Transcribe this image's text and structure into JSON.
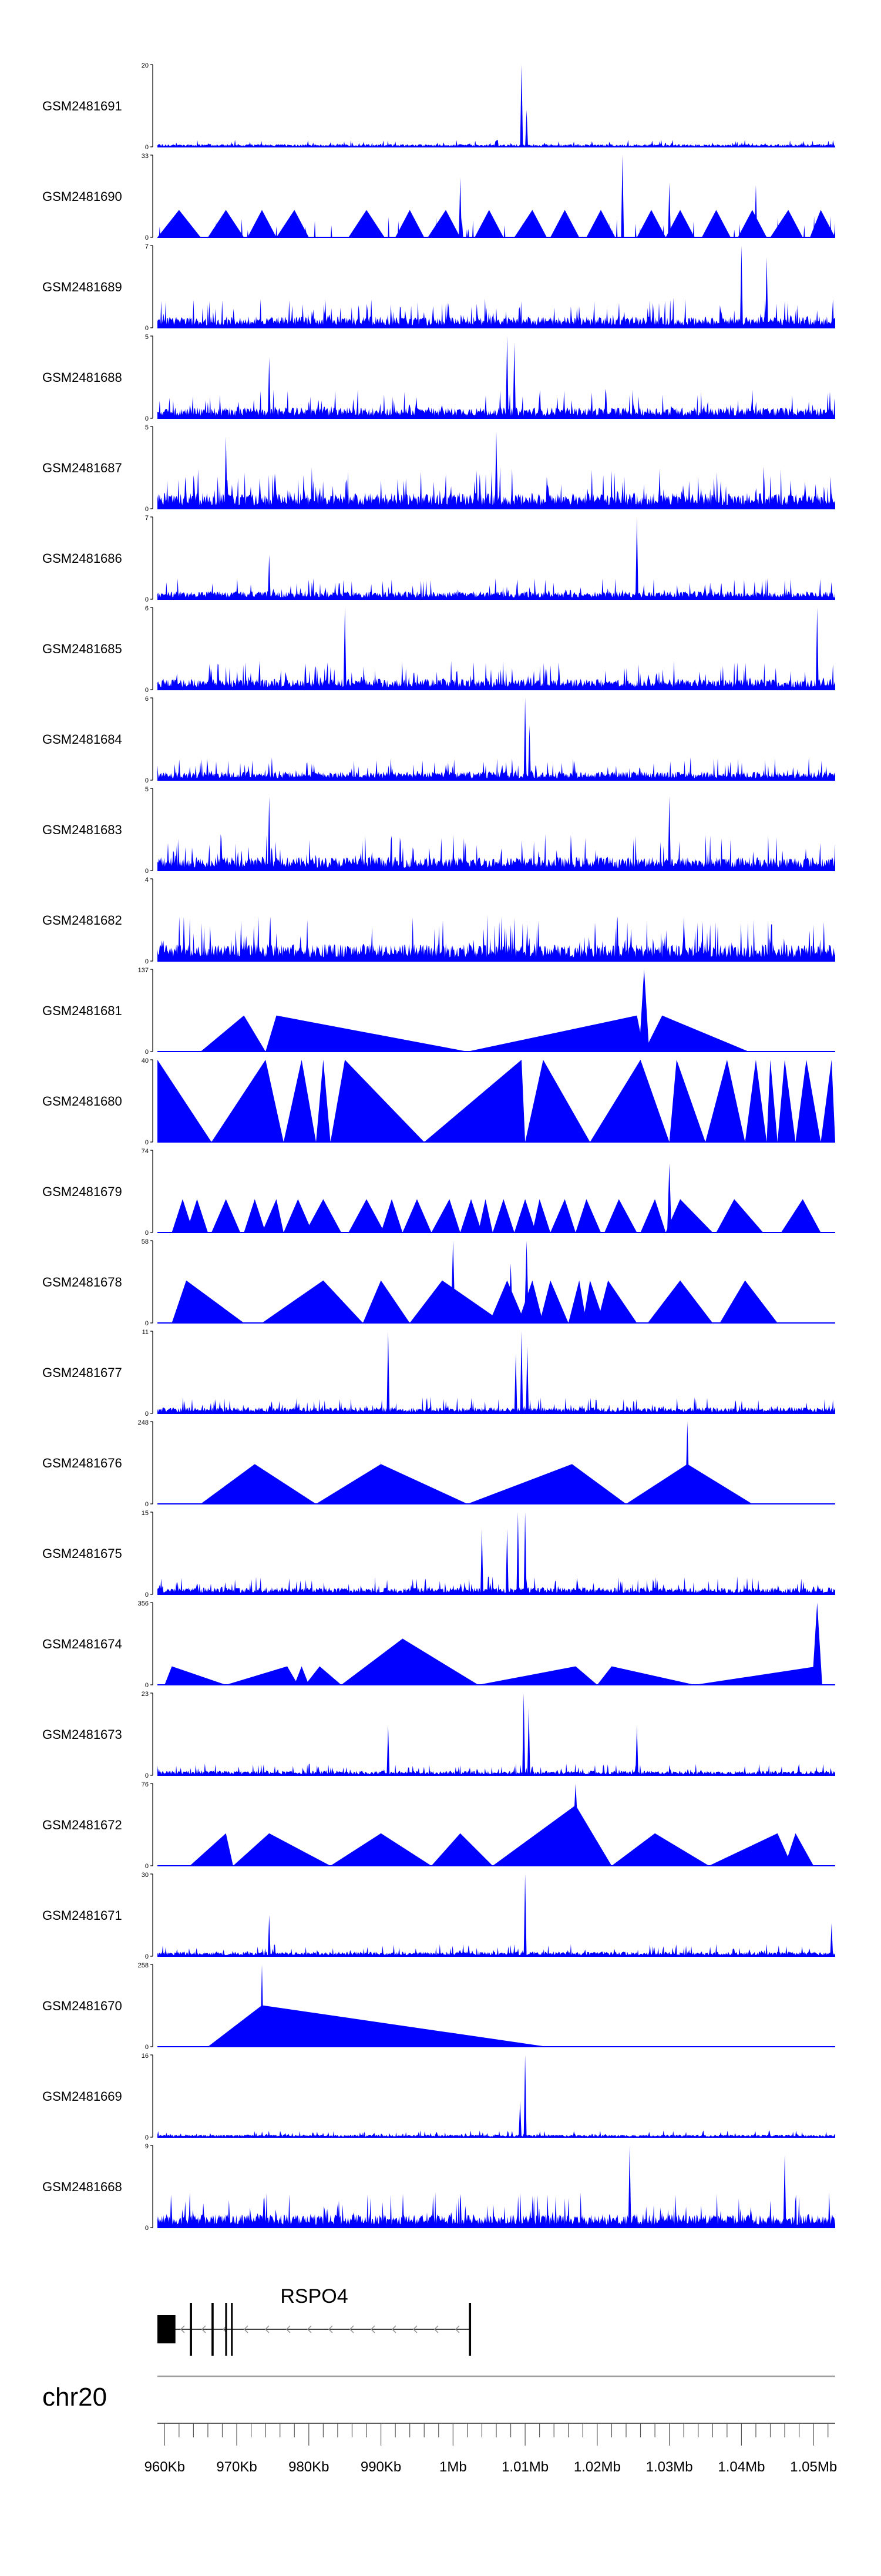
{
  "chart_data": {
    "type": "area",
    "title": "",
    "xlabel": "",
    "ylabel": "",
    "x_range_bp": [
      959000,
      1053000
    ],
    "colors": {
      "track": "#0000ff",
      "axis": "#000000",
      "gene": "#000000",
      "scale_line": "#a0a0a0"
    },
    "tracks": [
      {
        "name": "GSM2481691",
        "ymax": "20",
        "ymin": "0",
        "style": "noisy",
        "base": 1.6,
        "seed": 91,
        "peaks": [
          [
            1009500,
            20,
            200
          ],
          [
            1010200,
            9,
            200
          ]
        ]
      },
      {
        "name": "GSM2481690",
        "ymax": "33",
        "ymin": "0",
        "style": "mixed",
        "base": 4,
        "seed": 90,
        "triangles": [
          [
            959000,
            962000,
            965000,
            11
          ],
          [
            966000,
            968500,
            971000,
            11
          ],
          [
            971500,
            973500,
            975500,
            11
          ],
          [
            975500,
            978000,
            980000,
            11
          ],
          [
            985500,
            988000,
            990500,
            11
          ],
          [
            992000,
            994000,
            996000,
            11
          ],
          [
            996500,
            999000,
            1001000,
            11
          ],
          [
            1003000,
            1005000,
            1007000,
            11
          ],
          [
            1008500,
            1011000,
            1013000,
            11
          ],
          [
            1013500,
            1015500,
            1017500,
            11
          ],
          [
            1018500,
            1020500,
            1022500,
            11
          ],
          [
            1025500,
            1027500,
            1029500,
            11
          ],
          [
            1029500,
            1031500,
            1033500,
            11
          ],
          [
            1034500,
            1036500,
            1038500,
            11
          ],
          [
            1039500,
            1041500,
            1043500,
            11
          ],
          [
            1044000,
            1046500,
            1048500,
            11
          ],
          [
            1049500,
            1051000,
            1053000,
            11
          ]
        ],
        "peaks": [
          [
            1023500,
            33,
            200
          ],
          [
            1030000,
            22,
            200
          ],
          [
            1042000,
            21,
            200
          ],
          [
            1001000,
            24,
            200
          ]
        ]
      },
      {
        "name": "GSM2481689",
        "ymax": "7",
        "ymin": "0",
        "style": "noisy",
        "base": 2.3,
        "seed": 89,
        "peaks": [
          [
            1040000,
            7,
            200
          ],
          [
            1043500,
            6,
            200
          ]
        ]
      },
      {
        "name": "GSM2481688",
        "ymax": "5",
        "ymin": "0",
        "style": "noisy",
        "base": 1.6,
        "seed": 88,
        "peaks": [
          [
            1007500,
            5,
            200
          ],
          [
            1008500,
            4.6,
            200
          ],
          [
            974500,
            3.7,
            200
          ]
        ]
      },
      {
        "name": "GSM2481687",
        "ymax": "5",
        "ymin": "0",
        "style": "noisy",
        "base": 2.3,
        "seed": 87,
        "peaks": [
          [
            1006000,
            4.7,
            200
          ],
          [
            968500,
            4.4,
            200
          ]
        ]
      },
      {
        "name": "GSM2481686",
        "ymax": "7",
        "ymin": "0",
        "style": "noisy",
        "base": 1.6,
        "seed": 86,
        "peaks": [
          [
            1025500,
            7,
            200
          ],
          [
            974500,
            3.8,
            200
          ]
        ]
      },
      {
        "name": "GSM2481685",
        "ymax": "6",
        "ymin": "0",
        "style": "noisy",
        "base": 1.9,
        "seed": 85,
        "peaks": [
          [
            985000,
            6,
            200
          ],
          [
            1050500,
            6,
            200
          ]
        ]
      },
      {
        "name": "GSM2481684",
        "ymax": "6",
        "ymin": "0",
        "style": "noisy",
        "base": 1.5,
        "seed": 84,
        "peaks": [
          [
            1010000,
            6,
            200
          ],
          [
            1010600,
            4,
            200
          ]
        ]
      },
      {
        "name": "GSM2481683",
        "ymax": "5",
        "ymin": "0",
        "style": "noisy",
        "base": 2.0,
        "seed": 83,
        "peaks": [
          [
            974500,
            4.5,
            200
          ],
          [
            1030000,
            4.5,
            200
          ]
        ]
      },
      {
        "name": "GSM2481682",
        "ymax": "4",
        "ymin": "0",
        "style": "noisy",
        "base": 2.0,
        "seed": 82,
        "peaks": []
      },
      {
        "name": "GSM2481681",
        "ymax": "137",
        "ymin": "0",
        "style": "tri",
        "base": 0,
        "seed": 81,
        "triangles": [
          [
            965000,
            971000,
            974000,
            60
          ],
          [
            974000,
            975500,
            1002000,
            60
          ],
          [
            1002000,
            1025500,
            1026500,
            60
          ],
          [
            1026500,
            1029000,
            1041000,
            60
          ]
        ],
        "peaks": [
          [
            1026500,
            137,
            700
          ]
        ]
      },
      {
        "name": "GSM2481680",
        "ymax": "40",
        "ymin": "0",
        "style": "tri",
        "base": 0,
        "seed": 80,
        "triangles": [
          [
            959000,
            959000,
            966500,
            40
          ],
          [
            966500,
            974000,
            976500,
            40
          ],
          [
            976500,
            979000,
            981000,
            40
          ],
          [
            981000,
            982000,
            983000,
            40
          ],
          [
            983000,
            985000,
            996000,
            40
          ],
          [
            996000,
            1009500,
            1010000,
            40
          ],
          [
            1010000,
            1012500,
            1019000,
            40
          ],
          [
            1019000,
            1026000,
            1030000,
            40
          ],
          [
            1030000,
            1031000,
            1035000,
            40
          ],
          [
            1035000,
            1038000,
            1040500,
            40
          ],
          [
            1040500,
            1042000,
            1043500,
            40
          ],
          [
            1043500,
            1044000,
            1045000,
            40
          ],
          [
            1045000,
            1046000,
            1047500,
            40
          ],
          [
            1047500,
            1049000,
            1051000,
            40
          ],
          [
            1051000,
            1052500,
            1053000,
            40
          ]
        ]
      },
      {
        "name": "GSM2481679",
        "ymax": "74",
        "ymin": "0",
        "style": "tri",
        "base": 0,
        "seed": 79,
        "triangles": [
          [
            961000,
            962500,
            964000,
            30
          ],
          [
            963000,
            964500,
            966000,
            30
          ],
          [
            966500,
            968500,
            970500,
            30
          ],
          [
            971000,
            972500,
            974000,
            30
          ],
          [
            973500,
            975500,
            976500,
            30
          ],
          [
            976500,
            978500,
            980500,
            30
          ],
          [
            979500,
            982000,
            984500,
            30
          ],
          [
            985500,
            988000,
            990500,
            30
          ],
          [
            990000,
            991500,
            993000,
            30
          ],
          [
            993000,
            995000,
            997000,
            30
          ],
          [
            997000,
            999500,
            1001000,
            30
          ],
          [
            1001000,
            1002500,
            1004000,
            30
          ],
          [
            1003500,
            1004500,
            1005500,
            30
          ],
          [
            1005500,
            1007000,
            1008500,
            30
          ],
          [
            1008500,
            1010000,
            1011500,
            30
          ],
          [
            1011000,
            1012000,
            1013500,
            30
          ],
          [
            1013500,
            1015500,
            1017000,
            30
          ],
          [
            1017000,
            1018500,
            1020500,
            30
          ],
          [
            1021000,
            1023000,
            1025500,
            30
          ],
          [
            1026000,
            1028000,
            1029500,
            30
          ],
          [
            1029500,
            1031500,
            1036000,
            30
          ],
          [
            1036500,
            1039000,
            1043000,
            30
          ],
          [
            1045500,
            1048500,
            1051000,
            30
          ]
        ],
        "peaks": [
          [
            1030000,
            62,
            300
          ]
        ]
      },
      {
        "name": "GSM2481678",
        "ymax": "58",
        "ymin": "0",
        "style": "tri",
        "base": 0,
        "seed": 78,
        "triangles": [
          [
            961000,
            963000,
            971000,
            30
          ],
          [
            973500,
            982000,
            987500,
            30
          ],
          [
            987500,
            990000,
            994000,
            30
          ],
          [
            994000,
            998500,
            1007000,
            30
          ],
          [
            1005000,
            1007500,
            1010000,
            30
          ],
          [
            1009000,
            1011000,
            1012500,
            30
          ],
          [
            1012000,
            1013500,
            1016000,
            30
          ],
          [
            1016000,
            1017500,
            1018500,
            30
          ],
          [
            1018000,
            1019000,
            1021000,
            30
          ],
          [
            1020000,
            1021500,
            1025500,
            30
          ],
          [
            1027000,
            1031500,
            1036000,
            30
          ],
          [
            1037000,
            1040500,
            1045000,
            30
          ]
        ],
        "peaks": [
          [
            1000000,
            58,
            300
          ],
          [
            1010200,
            58,
            300
          ],
          [
            1008000,
            42,
            300
          ]
        ]
      },
      {
        "name": "GSM2481677",
        "ymax": "11",
        "ymin": "0",
        "style": "noisy",
        "base": 2.0,
        "seed": 77,
        "peaks": [
          [
            991000,
            11,
            200
          ],
          [
            1009500,
            11,
            200
          ],
          [
            1010300,
            9,
            200
          ],
          [
            1008700,
            8,
            200
          ]
        ]
      },
      {
        "name": "GSM2481676",
        "ymax": "248",
        "ymin": "0",
        "style": "tri",
        "base": 0,
        "seed": 76,
        "triangles": [
          [
            965000,
            972500,
            981000,
            120
          ],
          [
            981000,
            990000,
            1002000,
            120
          ],
          [
            1002000,
            1016500,
            1024000,
            120
          ],
          [
            1024000,
            1032500,
            1041500,
            120
          ]
        ],
        "peaks": [
          [
            1032500,
            248,
            300
          ],
          [
            990000,
            130,
            200
          ]
        ]
      },
      {
        "name": "GSM2481675",
        "ymax": "15",
        "ymin": "0",
        "style": "noisy",
        "base": 3.0,
        "seed": 75,
        "peaks": [
          [
            1009000,
            15,
            200
          ],
          [
            1010000,
            15,
            200
          ],
          [
            1007500,
            12,
            200
          ],
          [
            1004000,
            12,
            200
          ]
        ]
      },
      {
        "name": "GSM2481674",
        "ymax": "356",
        "ymin": "0",
        "style": "tri",
        "base": 0,
        "seed": 74,
        "triangles": [
          [
            960000,
            961000,
            968500,
            80
          ],
          [
            968500,
            977000,
            978500,
            80
          ],
          [
            978000,
            979000,
            980000,
            80
          ],
          [
            979500,
            981500,
            984500,
            80
          ],
          [
            984500,
            993000,
            1003500,
            200
          ],
          [
            1003500,
            1017000,
            1020000,
            80
          ],
          [
            1020000,
            1022000,
            1033500,
            80
          ],
          [
            1033500,
            1050500,
            1051000,
            80
          ]
        ],
        "peaks": [
          [
            1050500,
            356,
            700
          ]
        ]
      },
      {
        "name": "GSM2481673",
        "ymax": "23",
        "ymin": "0",
        "style": "noisy",
        "base": 3.0,
        "seed": 73,
        "peaks": [
          [
            1009800,
            23,
            200
          ],
          [
            1010500,
            19,
            200
          ],
          [
            991000,
            14,
            200
          ],
          [
            1025500,
            14,
            200
          ]
        ]
      },
      {
        "name": "GSM2481672",
        "ymax": "76",
        "ymin": "0",
        "style": "tri",
        "base": 0,
        "seed": 72,
        "triangles": [
          [
            963500,
            968500,
            969500,
            30
          ],
          [
            969500,
            974500,
            983000,
            30
          ],
          [
            983000,
            990000,
            997000,
            30
          ],
          [
            997000,
            1001000,
            1005500,
            30
          ],
          [
            1005500,
            1017000,
            1022000,
            56
          ],
          [
            1022000,
            1028000,
            1035500,
            30
          ],
          [
            1035500,
            1045000,
            1047000,
            30
          ],
          [
            1046000,
            1047500,
            1050000,
            30
          ]
        ],
        "peaks": [
          [
            1017000,
            76,
            600
          ]
        ]
      },
      {
        "name": "GSM2481671",
        "ymax": "30",
        "ymin": "0",
        "style": "noisy",
        "base": 4.0,
        "seed": 71,
        "peaks": [
          [
            1010000,
            30,
            200
          ],
          [
            974500,
            15,
            200
          ],
          [
            1052500,
            12,
            200
          ]
        ]
      },
      {
        "name": "GSM2481670",
        "ymax": "258",
        "ymin": "0",
        "style": "tri",
        "base": 0,
        "seed": 70,
        "triangles": [
          [
            966000,
            973500,
            1013000,
            130
          ]
        ],
        "peaks": [
          [
            973500,
            258,
            250
          ]
        ]
      },
      {
        "name": "GSM2481669",
        "ymax": "16",
        "ymin": "0",
        "style": "noisy",
        "base": 1.2,
        "seed": 69,
        "peaks": [
          [
            1010000,
            16,
            200
          ],
          [
            1009300,
            7,
            200
          ]
        ]
      },
      {
        "name": "GSM2481668",
        "ymax": "9",
        "ymin": "0",
        "style": "noisy",
        "base": 3.5,
        "seed": 68,
        "peaks": [
          [
            1024500,
            9,
            200
          ],
          [
            1046000,
            8,
            200
          ]
        ]
      }
    ],
    "gene": {
      "name": "RSPO4",
      "strand": "-",
      "start": 959000,
      "end": 1002500,
      "exons": [
        [
          959000,
          961500
        ],
        [
          963500,
          963800
        ],
        [
          966500,
          966800
        ],
        [
          968400,
          968650
        ],
        [
          969200,
          969450
        ],
        [
          1002200,
          1002500
        ]
      ],
      "thick_exons": [
        [
          959000,
          961500
        ]
      ]
    },
    "chromosome": "chr20",
    "axis": {
      "tick_labels": [
        "960Kb",
        "970Kb",
        "980Kb",
        "990Kb",
        "1Mb",
        "1.01Mb",
        "1.02Mb",
        "1.03Mb",
        "1.04Mb",
        "1.05Mb"
      ],
      "tick_values": [
        960000,
        970000,
        980000,
        990000,
        1000000,
        1010000,
        1020000,
        1030000,
        1040000,
        1050000
      ]
    }
  }
}
